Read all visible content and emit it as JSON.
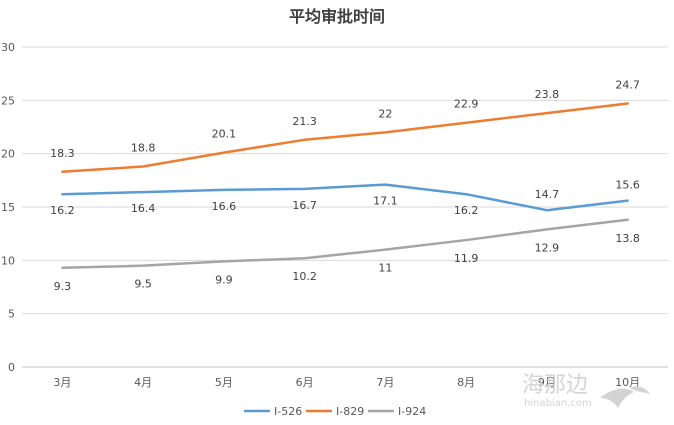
{
  "chart_data": {
    "type": "line",
    "title": "平均审批时间",
    "categories": [
      "3月",
      "4月",
      "5月",
      "6月",
      "7月",
      "8月",
      "9月",
      "10月"
    ],
    "ylim": [
      0,
      30
    ],
    "yticks": [
      0,
      5,
      10,
      15,
      20,
      25,
      30
    ],
    "grid": true,
    "legend_position": "bottom",
    "series": [
      {
        "name": "I-526",
        "color": "#5b9bd5",
        "values": [
          16.2,
          16.4,
          16.6,
          16.7,
          17.1,
          16.2,
          14.7,
          15.6
        ]
      },
      {
        "name": "I-829",
        "color": "#ed7d31",
        "values": [
          18.3,
          18.8,
          20.1,
          21.3,
          22,
          22.9,
          23.8,
          24.7
        ]
      },
      {
        "name": "I-924",
        "color": "#a5a5a5",
        "values": [
          9.3,
          9.5,
          9.9,
          10.2,
          11,
          11.9,
          12.9,
          13.8
        ]
      }
    ]
  },
  "watermark": {
    "text": "海那边",
    "sub": "hinabian.com"
  }
}
